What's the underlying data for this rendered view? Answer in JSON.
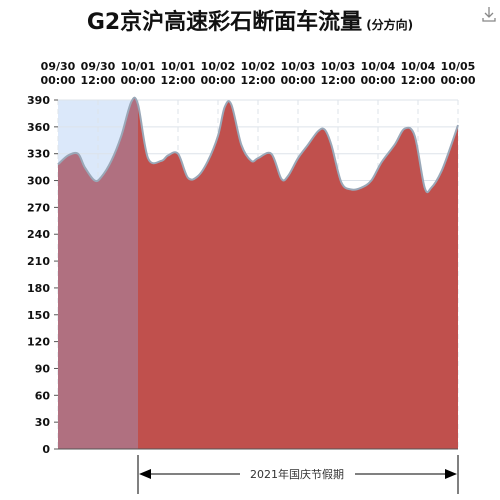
{
  "header": {
    "title": "G2京沪高速彩石断面车流量",
    "subtitle": "(分方向)",
    "download_icon": "download-icon"
  },
  "chart_data": {
    "type": "area",
    "title": "G2京沪高速彩石断面车流量",
    "subtitle": "(分方向)",
    "xlabel": "",
    "ylabel": "",
    "x_ticks": [
      [
        "09/30",
        "00:00"
      ],
      [
        "09/30",
        "12:00"
      ],
      [
        "10/01",
        "00:00"
      ],
      [
        "10/01",
        "12:00"
      ],
      [
        "10/02",
        "00:00"
      ],
      [
        "10/02",
        "12:00"
      ],
      [
        "10/03",
        "00:00"
      ],
      [
        "10/03",
        "12:00"
      ],
      [
        "10/04",
        "00:00"
      ],
      [
        "10/04",
        "12:00"
      ],
      [
        "10/05",
        "00:00"
      ]
    ],
    "xlim_hours": [
      0,
      120
    ],
    "ylim": [
      0,
      390
    ],
    "y_ticks": [
      0,
      30,
      60,
      90,
      120,
      150,
      180,
      210,
      240,
      270,
      300,
      330,
      360,
      390
    ],
    "grid": true,
    "series": [
      {
        "name": "",
        "points": [
          [
            0,
            318
          ],
          [
            3,
            328
          ],
          [
            6,
            330
          ],
          [
            8,
            315
          ],
          [
            11,
            300
          ],
          [
            13,
            304
          ],
          [
            16,
            322
          ],
          [
            19,
            350
          ],
          [
            22,
            388
          ],
          [
            24,
            385
          ],
          [
            27,
            325
          ],
          [
            31,
            322
          ],
          [
            33,
            328
          ],
          [
            36,
            330
          ],
          [
            39,
            303
          ],
          [
            42,
            305
          ],
          [
            45,
            322
          ],
          [
            48,
            350
          ],
          [
            50,
            382
          ],
          [
            52,
            385
          ],
          [
            55,
            340
          ],
          [
            58,
            322
          ],
          [
            60,
            325
          ],
          [
            64,
            330
          ],
          [
            67,
            302
          ],
          [
            69,
            305
          ],
          [
            72,
            325
          ],
          [
            75,
            340
          ],
          [
            78,
            355
          ],
          [
            80,
            357
          ],
          [
            82,
            340
          ],
          [
            85,
            298
          ],
          [
            88,
            290
          ],
          [
            91,
            292
          ],
          [
            94,
            300
          ],
          [
            97,
            320
          ],
          [
            101,
            340
          ],
          [
            104,
            358
          ],
          [
            107,
            350
          ],
          [
            110,
            292
          ],
          [
            112,
            292
          ],
          [
            115,
            310
          ],
          [
            118,
            340
          ],
          [
            120,
            362
          ]
        ]
      }
    ],
    "colors": {
      "area_fill": "#c0504d",
      "pre_holiday_fill": "#b07080",
      "pre_holiday_band": "#dbe8fa",
      "line": "#9aa8b8"
    },
    "regions": [
      {
        "label": "",
        "start_hours": 0,
        "end_hours": 24,
        "shade": "pre_holiday_band"
      },
      {
        "label": "2021年国庆节假期",
        "start_hours": 24,
        "end_hours": 120,
        "shade": "area_fill"
      }
    ]
  }
}
